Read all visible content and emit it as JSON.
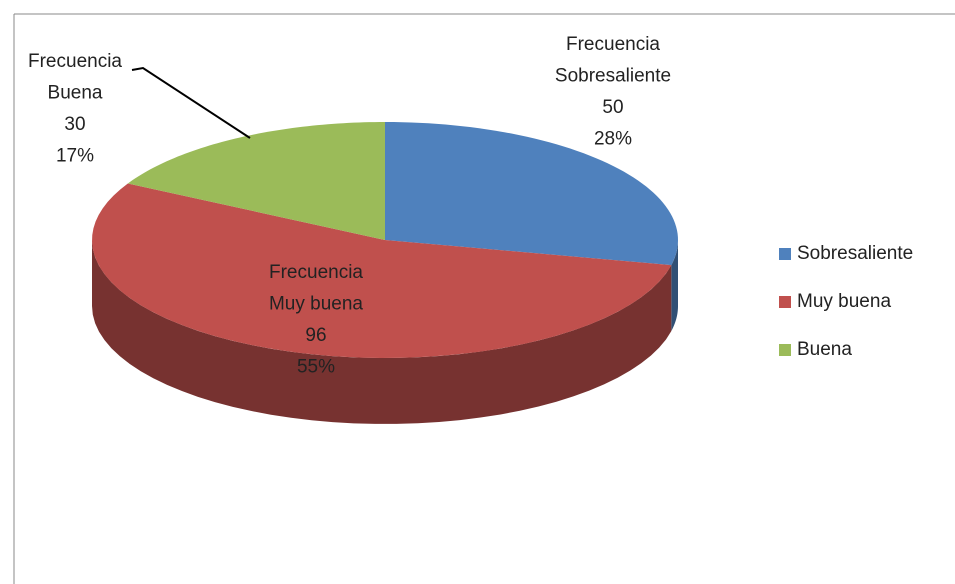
{
  "chart_data": {
    "type": "pie",
    "series_name": "Frecuencia",
    "categories": [
      "Sobresaliente",
      "Muy buena",
      "Buena"
    ],
    "values": [
      50,
      96,
      30
    ],
    "percentages": [
      28,
      55,
      17
    ],
    "percentage_labels": [
      "28%",
      "55%",
      "17%"
    ],
    "colors": [
      "#4f81bd",
      "#c0504d",
      "#9bbb59"
    ],
    "legend": "right"
  }
}
